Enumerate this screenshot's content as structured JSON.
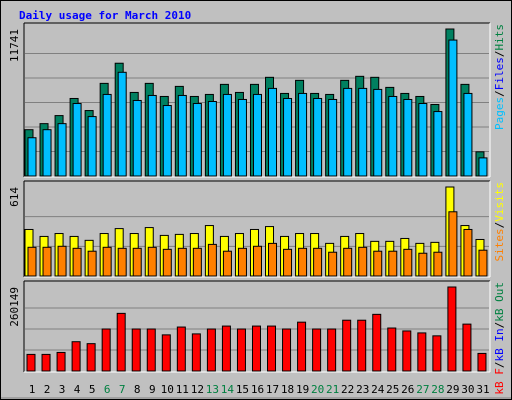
{
  "title": "Daily usage for March 2010",
  "categories": [
    "1",
    "2",
    "3",
    "4",
    "5",
    "6",
    "7",
    "8",
    "9",
    "10",
    "11",
    "12",
    "13",
    "14",
    "15",
    "16",
    "17",
    "18",
    "19",
    "20",
    "21",
    "22",
    "23",
    "24",
    "25",
    "26",
    "27",
    "28",
    "29",
    "30",
    "31"
  ],
  "category_colors": [
    "#000000",
    "#000000",
    "#000000",
    "#000000",
    "#000000",
    "#008040",
    "#008040",
    "#000000",
    "#000000",
    "#000000",
    "#000000",
    "#000000",
    "#008040",
    "#008040",
    "#000000",
    "#000000",
    "#000000",
    "#000000",
    "#000000",
    "#008040",
    "#008040",
    "#000000",
    "#000000",
    "#000000",
    "#000000",
    "#000000",
    "#008040",
    "#008040",
    "#000000",
    "#000000",
    "#000000"
  ],
  "legend_separator": "/",
  "chart_data": [
    {
      "type": "bar",
      "ylim": [
        0,
        11741
      ],
      "yticks": [
        11741
      ],
      "legend": [
        {
          "name": "Pages",
          "color": "#00C0FF"
        },
        {
          "name": "Files",
          "color": "#0000FF"
        },
        {
          "name": "Hits",
          "color": "#008040"
        }
      ],
      "series": [
        {
          "name": "Hits",
          "color": "#008060",
          "values": [
            3699,
            4182,
            4825,
            6192,
            5227,
            7398,
            9007,
            6674,
            7398,
            6353,
            7157,
            6353,
            6514,
            7318,
            6674,
            7318,
            7881,
            6594,
            7640,
            6594,
            6514,
            7640,
            7961,
            7881,
            7077,
            6594,
            6353,
            5710,
            11741,
            7318,
            1930
          ]
        },
        {
          "name": "Files",
          "color": "#00BFFF",
          "values": [
            3056,
            3699,
            4182,
            5790,
            4745,
            6514,
            8283,
            6032,
            6433,
            5629,
            6433,
            5790,
            5951,
            6514,
            6112,
            6514,
            6996,
            6192,
            6594,
            6192,
            6112,
            6996,
            6996,
            6916,
            6353,
            6112,
            5790,
            5147,
            10857,
            6594,
            1447
          ]
        }
      ]
    },
    {
      "type": "bar",
      "ylim": [
        0,
        614
      ],
      "yticks": [
        614
      ],
      "legend": [
        {
          "name": "Sites",
          "color": "#FF8000"
        },
        {
          "name": "Visits",
          "color": "#FFFF00"
        }
      ],
      "series": [
        {
          "name": "Visits",
          "color": "#FFFF00",
          "values": [
            321,
            273,
            293,
            273,
            246,
            293,
            327,
            293,
            334,
            280,
            287,
            293,
            348,
            273,
            293,
            321,
            341,
            273,
            293,
            293,
            225,
            273,
            293,
            239,
            239,
            259,
            225,
            232,
            614,
            348,
            252
          ]
        },
        {
          "name": "Sites",
          "color": "#FF8000",
          "values": [
            198,
            198,
            205,
            191,
            171,
            198,
            191,
            191,
            198,
            184,
            191,
            191,
            218,
            171,
            191,
            205,
            225,
            184,
            191,
            191,
            164,
            191,
            198,
            171,
            171,
            184,
            157,
            164,
            443,
            321,
            178
          ]
        }
      ]
    },
    {
      "type": "bar",
      "ylim": [
        0,
        260149
      ],
      "yticks": [
        260149
      ],
      "legend": [
        {
          "name": "kB F",
          "color": "#FF0000"
        },
        {
          "name": "kB In",
          "color": "#0000FF"
        },
        {
          "name": "kB Out",
          "color": "#008040"
        }
      ],
      "series": [
        {
          "name": "kB F",
          "color": "#FF0000",
          "values": [
            51425,
            51425,
            57475,
            90750,
            84700,
            130075,
            178474,
            130075,
            130075,
            111925,
            136125,
            114950,
            130075,
            139150,
            130075,
            139150,
            139150,
            130075,
            151250,
            130075,
            130075,
            157300,
            157300,
            175449,
            133100,
            124025,
            117975,
            108900,
            260149,
            145200,
            54450
          ]
        }
      ]
    }
  ]
}
